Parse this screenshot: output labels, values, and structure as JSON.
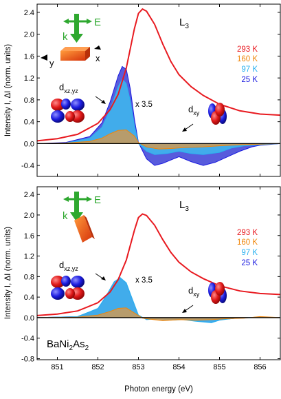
{
  "chart_data": [
    {
      "type": "area",
      "panel_label": "L",
      "panel_label_sub": "3",
      "ylabel": "Intensity I, ΔI (norm. units)",
      "ylim": [
        -0.6,
        2.55
      ],
      "yticks": [
        "-0.4",
        "0.0",
        "0.4",
        "0.8",
        "1.2",
        "1.6",
        "2.0",
        "2.4"
      ],
      "ytick_values": [
        -0.4,
        0.0,
        0.4,
        0.8,
        1.2,
        1.6,
        2.0,
        2.4
      ],
      "scale_note": "x 3.5",
      "orbital_left_main": "d",
      "orbital_left_sub": "xz,yz",
      "orbital_right_main": "d",
      "orbital_right_sub": "xy",
      "geometry_labels": {
        "E": "E",
        "k": "k",
        "x": "x",
        "y": "y"
      },
      "legend": [
        "293 K",
        "160 K",
        "97 K",
        "25 K"
      ],
      "series": [
        {
          "name": "293 K",
          "kind": "line",
          "x": [
            850.5,
            851.0,
            851.5,
            852.0,
            852.3,
            852.5,
            852.7,
            852.9,
            853.0,
            853.1,
            853.2,
            853.4,
            853.6,
            853.8,
            854.0,
            854.3,
            854.6,
            855.0,
            855.5,
            856.0,
            856.5
          ],
          "y": [
            0.05,
            0.09,
            0.17,
            0.37,
            0.62,
            0.9,
            1.38,
            2.1,
            2.38,
            2.46,
            2.42,
            2.18,
            1.82,
            1.5,
            1.26,
            1.04,
            0.88,
            0.72,
            0.6,
            0.54,
            0.52
          ]
        },
        {
          "name": "160 K",
          "kind": "diff",
          "x": [
            850.5,
            851.2,
            851.8,
            852.1,
            852.3,
            852.5,
            852.7,
            852.9,
            853.0,
            853.2,
            853.5,
            853.8,
            854.2,
            854.6,
            855.0,
            855.5,
            856.0,
            856.5
          ],
          "y": [
            0.0,
            0.01,
            0.04,
            0.1,
            0.18,
            0.24,
            0.25,
            0.14,
            0.02,
            -0.06,
            -0.1,
            -0.09,
            -0.07,
            -0.06,
            -0.04,
            -0.02,
            -0.01,
            0.0
          ]
        },
        {
          "name": "97 K",
          "kind": "diff",
          "x": [
            850.5,
            851.2,
            851.8,
            852.1,
            852.3,
            852.5,
            852.6,
            852.7,
            852.8,
            852.9,
            853.0,
            853.2,
            853.4,
            853.7,
            854.0,
            854.3,
            854.6,
            855.0,
            855.3,
            855.6,
            856.0,
            856.5
          ],
          "y": [
            0.0,
            0.01,
            0.1,
            0.3,
            0.62,
            1.04,
            1.18,
            1.1,
            0.78,
            0.34,
            0.0,
            -0.14,
            -0.2,
            -0.18,
            -0.14,
            -0.18,
            -0.2,
            -0.16,
            -0.08,
            -0.04,
            -0.02,
            0.0
          ]
        },
        {
          "name": "25 K",
          "kind": "diff",
          "x": [
            850.5,
            851.2,
            851.8,
            852.1,
            852.3,
            852.5,
            852.6,
            852.7,
            852.8,
            852.9,
            853.0,
            853.2,
            853.4,
            853.6,
            853.8,
            854.0,
            854.3,
            854.6,
            854.9,
            855.2,
            855.5,
            855.8,
            856.0,
            856.5
          ],
          "y": [
            0.0,
            0.02,
            0.13,
            0.38,
            0.76,
            1.24,
            1.41,
            1.36,
            1.0,
            0.45,
            0.02,
            -0.28,
            -0.4,
            -0.36,
            -0.3,
            -0.24,
            -0.33,
            -0.4,
            -0.34,
            -0.24,
            -0.14,
            -0.06,
            -0.03,
            0.0
          ]
        }
      ]
    },
    {
      "type": "area",
      "panel_label": "L",
      "panel_label_sub": "3",
      "compound_parts": [
        "BaNi",
        "2",
        "As",
        "2"
      ],
      "ylabel": "Intensity I, ΔI (norm. units)",
      "xlabel": "Photon energy (eV)",
      "xlim": [
        850.5,
        856.5
      ],
      "xticks": [
        "851",
        "852",
        "853",
        "854",
        "855",
        "856"
      ],
      "xtick_values": [
        851,
        852,
        853,
        854,
        855,
        856
      ],
      "ylim": [
        -0.82,
        2.55
      ],
      "yticks": [
        "-0.8",
        "-0.4",
        "0.0",
        "0.4",
        "0.8",
        "1.2",
        "1.6",
        "2.0",
        "2.4"
      ],
      "ytick_values": [
        -0.8,
        -0.4,
        0.0,
        0.4,
        0.8,
        1.2,
        1.6,
        2.0,
        2.4
      ],
      "scale_note": "x 3.5",
      "orbital_left_main": "d",
      "orbital_left_sub": "xz,yz",
      "orbital_right_main": "d",
      "orbital_right_sub": "xy",
      "geometry_labels": {
        "E": "E",
        "k": "k"
      },
      "legend": [
        "293 K",
        "160 K",
        "97 K",
        "25 K"
      ],
      "series": [
        {
          "name": "293 K",
          "kind": "line",
          "x": [
            850.5,
            851.0,
            851.5,
            852.0,
            852.3,
            852.5,
            852.7,
            852.9,
            853.0,
            853.1,
            853.2,
            853.4,
            853.6,
            853.8,
            854.0,
            854.3,
            854.6,
            855.0,
            855.5,
            856.0,
            856.5
          ],
          "y": [
            0.04,
            0.07,
            0.13,
            0.29,
            0.5,
            0.74,
            1.12,
            1.7,
            1.95,
            2.02,
            1.99,
            1.8,
            1.52,
            1.27,
            1.08,
            0.89,
            0.76,
            0.62,
            0.52,
            0.47,
            0.45
          ]
        },
        {
          "name": "160 K",
          "kind": "diff",
          "x": [
            850.5,
            851.5,
            852.0,
            852.3,
            852.5,
            852.7,
            852.9,
            853.1,
            853.3,
            853.6,
            854.0,
            854.4,
            854.8,
            855.2,
            855.6,
            856.0,
            856.5
          ],
          "y": [
            0.0,
            0.01,
            0.05,
            0.12,
            0.18,
            0.19,
            0.09,
            -0.01,
            -0.03,
            -0.06,
            -0.04,
            -0.05,
            -0.04,
            -0.02,
            -0.01,
            0.02,
            0.0
          ]
        },
        {
          "name": "97 K",
          "kind": "diff",
          "x": [
            850.5,
            851.5,
            852.0,
            852.2,
            852.4,
            852.55,
            852.7,
            852.85,
            853.0,
            853.2,
            853.5,
            853.8,
            854.1,
            854.4,
            854.8,
            855.0,
            855.3,
            855.6,
            856.0,
            856.5
          ],
          "y": [
            0.0,
            0.02,
            0.18,
            0.42,
            0.7,
            0.78,
            0.68,
            0.36,
            0.05,
            -0.04,
            -0.02,
            -0.05,
            -0.04,
            -0.07,
            -0.1,
            -0.05,
            -0.02,
            0.0,
            0.01,
            0.0
          ]
        },
        {
          "name": "25 K",
          "kind": "diff",
          "x": [
            850.5,
            851.5,
            852.0,
            852.2,
            852.4,
            852.55,
            852.7,
            852.85,
            853.0,
            853.2,
            853.5,
            853.8,
            854.1,
            854.4,
            854.8,
            855.0,
            855.3,
            855.6,
            856.0,
            856.5
          ],
          "y": [
            0.0,
            0.02,
            0.17,
            0.4,
            0.68,
            0.76,
            0.66,
            0.34,
            0.04,
            -0.03,
            -0.02,
            -0.04,
            -0.03,
            -0.06,
            -0.09,
            -0.04,
            -0.02,
            0.0,
            0.01,
            0.0
          ]
        }
      ]
    }
  ],
  "colors": {
    "293 K": "#e8191f",
    "160 K": "#f0860a",
    "97 K": "#2ab1f0",
    "25 K": "#1a1ae0",
    "160_fill": "#c49a5e",
    "97_fill": "#3fb5ec",
    "25_fill": "#3b3ed6",
    "arrow_green": "#2ea82f",
    "sample": "#e8551a"
  }
}
